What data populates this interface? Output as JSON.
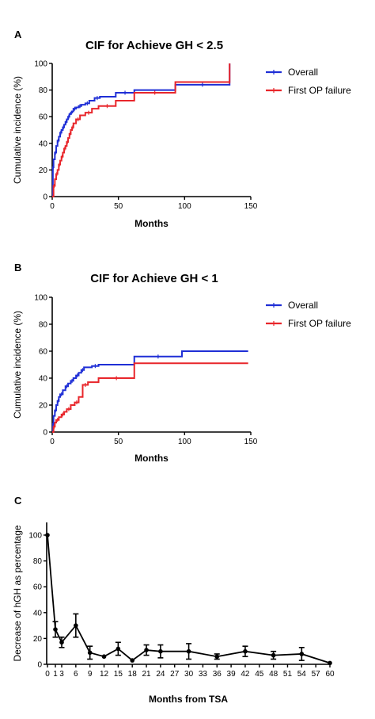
{
  "chart_data": [
    {
      "panel": "A",
      "type": "line",
      "step": true,
      "title": "CIF for Achieve GH < 2.5",
      "xlabel": "Months",
      "ylabel": "Cumulative incidence (%)",
      "xlim": [
        0,
        150
      ],
      "ylim": [
        0,
        100
      ],
      "xticks": [
        0,
        50,
        100,
        150
      ],
      "yticks": [
        0,
        20,
        40,
        60,
        80,
        100
      ],
      "legend": "top-right",
      "series": [
        {
          "name": "Overall",
          "color": "#1f2fd6",
          "x": [
            0,
            0.5,
            1,
            2,
            3,
            4,
            5,
            6,
            7,
            8,
            9,
            10,
            11,
            12,
            13,
            14,
            15,
            16,
            18,
            20,
            22,
            25,
            28,
            32,
            36,
            48,
            62,
            93,
            134,
            134
          ],
          "y": [
            0,
            22,
            28,
            33,
            38,
            42,
            45,
            48,
            50,
            52,
            54,
            56,
            58,
            60,
            62,
            63,
            64,
            66,
            67,
            68,
            69,
            70,
            72,
            74,
            75,
            78,
            80,
            84,
            85,
            100
          ]
        },
        {
          "name": "First OP failure",
          "color": "#e8262b",
          "x": [
            0,
            1,
            2,
            3,
            4,
            5,
            6,
            7,
            8,
            9,
            10,
            11,
            12,
            13,
            14,
            15,
            16,
            18,
            21,
            25,
            30,
            35,
            48,
            62,
            93,
            134,
            134
          ],
          "y": [
            0,
            8,
            13,
            17,
            20,
            24,
            27,
            30,
            33,
            36,
            38,
            41,
            44,
            47,
            50,
            52,
            55,
            58,
            61,
            63,
            66,
            68,
            72,
            78,
            86,
            86,
            100
          ]
        }
      ]
    },
    {
      "panel": "B",
      "type": "line",
      "step": true,
      "title": "CIF for Achieve GH < 1",
      "xlabel": "Months",
      "ylabel": "Cumulative incidence (%)",
      "xlim": [
        0,
        150
      ],
      "ylim": [
        0,
        100
      ],
      "xticks": [
        0,
        50,
        100,
        150
      ],
      "yticks": [
        0,
        20,
        40,
        60,
        80,
        100
      ],
      "legend": "top-right",
      "series": [
        {
          "name": "Overall",
          "color": "#1f2fd6",
          "x": [
            0,
            0.5,
            1,
            2,
            3,
            4,
            5,
            6,
            8,
            10,
            12,
            14,
            16,
            18,
            20,
            22,
            24,
            30,
            35,
            62,
            98,
            148
          ],
          "y": [
            0,
            6,
            12,
            16,
            20,
            23,
            26,
            28,
            31,
            34,
            36,
            38,
            40,
            42,
            44,
            46,
            48,
            49,
            50,
            56,
            60,
            60
          ]
        },
        {
          "name": "First OP failure",
          "color": "#e8262b",
          "x": [
            0,
            1,
            2,
            3,
            5,
            7,
            9,
            11,
            14,
            17,
            20,
            23,
            27,
            35,
            62,
            148
          ],
          "y": [
            0,
            4,
            7,
            9,
            11,
            13,
            15,
            17,
            20,
            22,
            26,
            35,
            37,
            40,
            51,
            51
          ]
        }
      ]
    },
    {
      "panel": "C",
      "type": "line",
      "title": "",
      "xlabel": "Months from TSA",
      "ylabel": "Decrease of hGH as percentage",
      "xlim": [
        0,
        60
      ],
      "ylim": [
        0,
        110
      ],
      "xticks": [
        0,
        1,
        3,
        6,
        9,
        12,
        15,
        18,
        21,
        24,
        27,
        30,
        33,
        36,
        39,
        42,
        45,
        48,
        51,
        54,
        57,
        60
      ],
      "yticks": [
        0,
        20,
        40,
        60,
        80,
        100
      ],
      "legend": "none",
      "series": [
        {
          "name": "",
          "color": "#000000",
          "x": [
            0,
            1,
            3,
            6,
            9,
            12,
            15,
            18,
            21,
            24,
            30,
            36,
            42,
            48,
            54,
            60
          ],
          "y": [
            100,
            27,
            17,
            30,
            9,
            6,
            12,
            3,
            11,
            10,
            10,
            6,
            10,
            7,
            8,
            1
          ],
          "error": [
            0,
            6,
            4,
            9,
            5,
            0,
            5,
            0,
            4,
            5,
            6,
            2,
            4,
            3,
            5,
            0
          ]
        }
      ]
    }
  ]
}
